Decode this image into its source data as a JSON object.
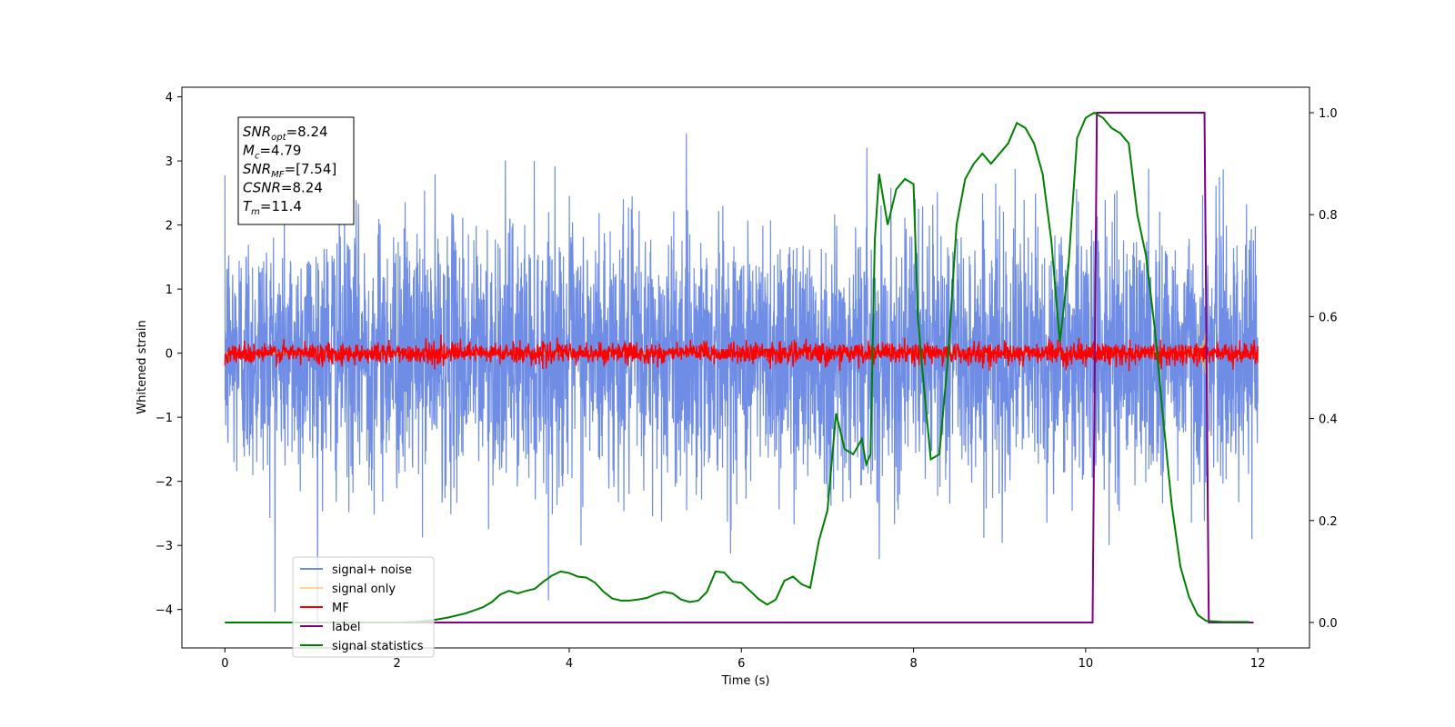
{
  "chart_data": {
    "type": "line",
    "xlabel": "Time (s)",
    "ylabel": "Whitened strain",
    "xlim": [
      -0.5,
      12.6
    ],
    "ylim_left": [
      -4.6,
      4.15
    ],
    "ylim_right": [
      -0.05,
      1.05
    ],
    "xticks": [
      0,
      2,
      4,
      6,
      8,
      10,
      12
    ],
    "yticks_left": [
      -4,
      -3,
      -2,
      -1,
      0,
      1,
      2,
      3,
      4
    ],
    "yticks_right": [
      0.0,
      0.2,
      0.4,
      0.6,
      0.8,
      1.0
    ],
    "legend_position": "bottom-left",
    "annotation": {
      "lines": [
        {
          "var": "SNR",
          "sub": "opt",
          "value": "=8.24"
        },
        {
          "var": "M",
          "sub": "c",
          "value": "=4.79"
        },
        {
          "var": "SNR",
          "sub": "MF",
          "value": "=[7.54]"
        },
        {
          "var": "CSNR",
          "sub": "",
          "value": "=8.24"
        },
        {
          "var": "T",
          "sub": "m",
          "value": "=11.4"
        }
      ]
    },
    "series": [
      {
        "name": "signal+ noise",
        "color": "#6f8de5",
        "axis": "left",
        "kind": "noise",
        "x_range": [
          0,
          12
        ],
        "std": 1.0,
        "visible_range": [
          -4.2,
          3.75
        ]
      },
      {
        "name": "signal only",
        "color": "#ffbf47",
        "axis": "left",
        "kind": "chirp",
        "x_range": [
          0,
          11.4
        ],
        "amplitude_end": 0.6,
        "fill_color": "#c4a07a"
      },
      {
        "name": "MF",
        "color": "#ff0000",
        "axis": "left",
        "kind": "noise",
        "x_range": [
          0,
          12
        ],
        "std": 0.08
      },
      {
        "name": "label",
        "color": "#800080",
        "axis": "right",
        "x": [
          0,
          10.08,
          10.13,
          11.38,
          11.43,
          11.95
        ],
        "y": [
          0,
          0,
          1,
          1,
          0,
          0
        ]
      },
      {
        "name": "signal statistics",
        "color": "#008000",
        "axis": "right",
        "x": [
          0,
          0.5,
          1,
          1.5,
          2,
          2.2,
          2.4,
          2.6,
          2.8,
          3.0,
          3.1,
          3.2,
          3.3,
          3.4,
          3.5,
          3.6,
          3.7,
          3.8,
          3.9,
          4.0,
          4.1,
          4.2,
          4.3,
          4.4,
          4.5,
          4.6,
          4.7,
          4.8,
          4.9,
          5.0,
          5.1,
          5.2,
          5.3,
          5.4,
          5.5,
          5.6,
          5.7,
          5.8,
          5.9,
          6.0,
          6.1,
          6.2,
          6.3,
          6.4,
          6.5,
          6.6,
          6.7,
          6.8,
          6.9,
          7.0,
          7.1,
          7.2,
          7.3,
          7.4,
          7.45,
          7.5,
          7.55,
          7.6,
          7.7,
          7.8,
          7.9,
          8.0,
          8.05,
          8.1,
          8.2,
          8.3,
          8.4,
          8.5,
          8.6,
          8.7,
          8.8,
          8.9,
          9.0,
          9.1,
          9.2,
          9.3,
          9.4,
          9.5,
          9.6,
          9.7,
          9.8,
          9.9,
          10.0,
          10.1,
          10.2,
          10.3,
          10.4,
          10.5,
          10.6,
          10.7,
          10.8,
          10.9,
          11.0,
          11.1,
          11.2,
          11.3,
          11.4,
          11.6,
          11.9
        ],
        "y": [
          0,
          0,
          0,
          0,
          0,
          0.001,
          0.004,
          0.01,
          0.018,
          0.03,
          0.04,
          0.055,
          0.062,
          0.057,
          0.062,
          0.066,
          0.08,
          0.092,
          0.1,
          0.097,
          0.09,
          0.088,
          0.078,
          0.06,
          0.047,
          0.043,
          0.043,
          0.045,
          0.048,
          0.055,
          0.06,
          0.057,
          0.045,
          0.04,
          0.043,
          0.06,
          0.1,
          0.098,
          0.08,
          0.078,
          0.062,
          0.046,
          0.035,
          0.045,
          0.082,
          0.09,
          0.075,
          0.068,
          0.16,
          0.22,
          0.41,
          0.34,
          0.33,
          0.36,
          0.31,
          0.33,
          0.75,
          0.88,
          0.78,
          0.85,
          0.87,
          0.86,
          0.6,
          0.5,
          0.32,
          0.33,
          0.52,
          0.78,
          0.87,
          0.9,
          0.92,
          0.9,
          0.92,
          0.94,
          0.98,
          0.97,
          0.94,
          0.88,
          0.75,
          0.55,
          0.7,
          0.95,
          0.99,
          1.0,
          0.99,
          0.97,
          0.96,
          0.94,
          0.8,
          0.72,
          0.58,
          0.4,
          0.23,
          0.11,
          0.05,
          0.015,
          0.003,
          0.001,
          0.001
        ]
      }
    ]
  }
}
